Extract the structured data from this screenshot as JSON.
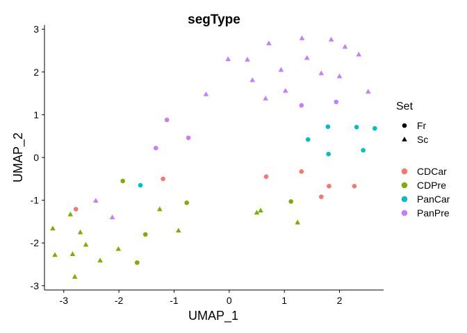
{
  "chart_data": {
    "type": "scatter",
    "title": "segType",
    "xlabel": "UMAP_1",
    "ylabel": "UMAP_2",
    "xlim": [
      -3.35,
      2.8
    ],
    "ylim": [
      -3.1,
      3.1
    ],
    "xticks": [
      -3,
      -2,
      -1,
      0,
      1,
      2
    ],
    "yticks": [
      -3,
      -2,
      -1,
      0,
      1,
      2,
      3
    ],
    "grid": false,
    "legend_position": "right",
    "shape_legend": {
      "title": "Set",
      "items": [
        {
          "label": "Fr",
          "shape": "circle"
        },
        {
          "label": "Sc",
          "shape": "triangle"
        }
      ]
    },
    "color_legend": {
      "items": [
        {
          "label": "CDCar",
          "color": "#F8766D"
        },
        {
          "label": "CDPre",
          "color": "#7CAE00"
        },
        {
          "label": "PanCar",
          "color": "#00BFC4"
        },
        {
          "label": "PanPre",
          "color": "#C77CFF"
        }
      ]
    },
    "points": [
      {
        "x": 1.32,
        "y": 2.79,
        "set": "Sc",
        "group": "PanPre"
      },
      {
        "x": 1.85,
        "y": 2.76,
        "set": "Sc",
        "group": "PanPre"
      },
      {
        "x": 0.72,
        "y": 2.67,
        "set": "Sc",
        "group": "PanPre"
      },
      {
        "x": 2.1,
        "y": 2.59,
        "set": "Sc",
        "group": "PanPre"
      },
      {
        "x": 2.35,
        "y": 2.41,
        "set": "Sc",
        "group": "PanPre"
      },
      {
        "x": 1.41,
        "y": 2.33,
        "set": "Sc",
        "group": "PanPre"
      },
      {
        "x": -0.02,
        "y": 2.3,
        "set": "Sc",
        "group": "PanPre"
      },
      {
        "x": 0.33,
        "y": 2.29,
        "set": "Sc",
        "group": "PanPre"
      },
      {
        "x": 0.94,
        "y": 2.05,
        "set": "Sc",
        "group": "PanPre"
      },
      {
        "x": 1.67,
        "y": 1.97,
        "set": "Sc",
        "group": "PanPre"
      },
      {
        "x": 2.0,
        "y": 1.9,
        "set": "Sc",
        "group": "PanPre"
      },
      {
        "x": 0.42,
        "y": 1.81,
        "set": "Sc",
        "group": "PanPre"
      },
      {
        "x": 1.02,
        "y": 1.56,
        "set": "Sc",
        "group": "PanPre"
      },
      {
        "x": 2.52,
        "y": 1.54,
        "set": "Sc",
        "group": "PanPre"
      },
      {
        "x": -0.42,
        "y": 1.48,
        "set": "Sc",
        "group": "PanPre"
      },
      {
        "x": 0.66,
        "y": 1.38,
        "set": "Sc",
        "group": "PanPre"
      },
      {
        "x": 1.94,
        "y": 1.3,
        "set": "Fr",
        "group": "PanPre"
      },
      {
        "x": 1.31,
        "y": 1.22,
        "set": "Fr",
        "group": "PanPre"
      },
      {
        "x": -1.13,
        "y": 0.88,
        "set": "Fr",
        "group": "PanPre"
      },
      {
        "x": -0.74,
        "y": 0.46,
        "set": "Fr",
        "group": "PanPre"
      },
      {
        "x": -1.33,
        "y": 0.22,
        "set": "Fr",
        "group": "PanPre"
      },
      {
        "x": -2.42,
        "y": -1.01,
        "set": "Sc",
        "group": "PanPre"
      },
      {
        "x": -2.12,
        "y": -1.4,
        "set": "Sc",
        "group": "PanPre"
      },
      {
        "x": 1.79,
        "y": 0.72,
        "set": "Fr",
        "group": "PanCar"
      },
      {
        "x": 2.31,
        "y": 0.71,
        "set": "Fr",
        "group": "PanCar"
      },
      {
        "x": 2.64,
        "y": 0.68,
        "set": "Fr",
        "group": "PanCar"
      },
      {
        "x": 1.43,
        "y": 0.42,
        "set": "Fr",
        "group": "PanCar"
      },
      {
        "x": 2.43,
        "y": 0.17,
        "set": "Fr",
        "group": "PanCar"
      },
      {
        "x": 1.8,
        "y": 0.08,
        "set": "Fr",
        "group": "PanCar"
      },
      {
        "x": -1.61,
        "y": -0.65,
        "set": "Fr",
        "group": "PanCar"
      },
      {
        "x": 1.31,
        "y": -0.33,
        "set": "Fr",
        "group": "CDCar"
      },
      {
        "x": 0.67,
        "y": -0.45,
        "set": "Fr",
        "group": "CDCar"
      },
      {
        "x": -1.2,
        "y": -0.5,
        "set": "Fr",
        "group": "CDCar"
      },
      {
        "x": 1.81,
        "y": -0.67,
        "set": "Fr",
        "group": "CDCar"
      },
      {
        "x": 2.27,
        "y": -0.67,
        "set": "Fr",
        "group": "CDCar"
      },
      {
        "x": 1.67,
        "y": -0.92,
        "set": "Fr",
        "group": "CDCar"
      },
      {
        "x": -2.78,
        "y": -1.21,
        "set": "Fr",
        "group": "CDCar"
      },
      {
        "x": -1.93,
        "y": -0.55,
        "set": "Fr",
        "group": "CDPre"
      },
      {
        "x": -0.77,
        "y": -1.06,
        "set": "Fr",
        "group": "CDPre"
      },
      {
        "x": 1.12,
        "y": -1.03,
        "set": "Fr",
        "group": "CDPre"
      },
      {
        "x": -1.26,
        "y": -1.21,
        "set": "Sc",
        "group": "CDPre"
      },
      {
        "x": 0.57,
        "y": -1.24,
        "set": "Sc",
        "group": "CDPre"
      },
      {
        "x": 0.5,
        "y": -1.29,
        "set": "Sc",
        "group": "CDPre"
      },
      {
        "x": -2.88,
        "y": -1.33,
        "set": "Sc",
        "group": "CDPre"
      },
      {
        "x": 1.24,
        "y": -1.52,
        "set": "Sc",
        "group": "CDPre"
      },
      {
        "x": -3.2,
        "y": -1.66,
        "set": "Sc",
        "group": "CDPre"
      },
      {
        "x": -0.92,
        "y": -1.71,
        "set": "Sc",
        "group": "CDPre"
      },
      {
        "x": -2.7,
        "y": -1.75,
        "set": "Sc",
        "group": "CDPre"
      },
      {
        "x": -1.52,
        "y": -1.8,
        "set": "Fr",
        "group": "CDPre"
      },
      {
        "x": -2.6,
        "y": -2.04,
        "set": "Sc",
        "group": "CDPre"
      },
      {
        "x": -2.01,
        "y": -2.14,
        "set": "Sc",
        "group": "CDPre"
      },
      {
        "x": -3.16,
        "y": -2.28,
        "set": "Sc",
        "group": "CDPre"
      },
      {
        "x": -2.84,
        "y": -2.26,
        "set": "Sc",
        "group": "CDPre"
      },
      {
        "x": -2.34,
        "y": -2.41,
        "set": "Sc",
        "group": "CDPre"
      },
      {
        "x": -1.67,
        "y": -2.46,
        "set": "Fr",
        "group": "CDPre"
      },
      {
        "x": -2.8,
        "y": -2.79,
        "set": "Sc",
        "group": "CDPre"
      }
    ]
  }
}
